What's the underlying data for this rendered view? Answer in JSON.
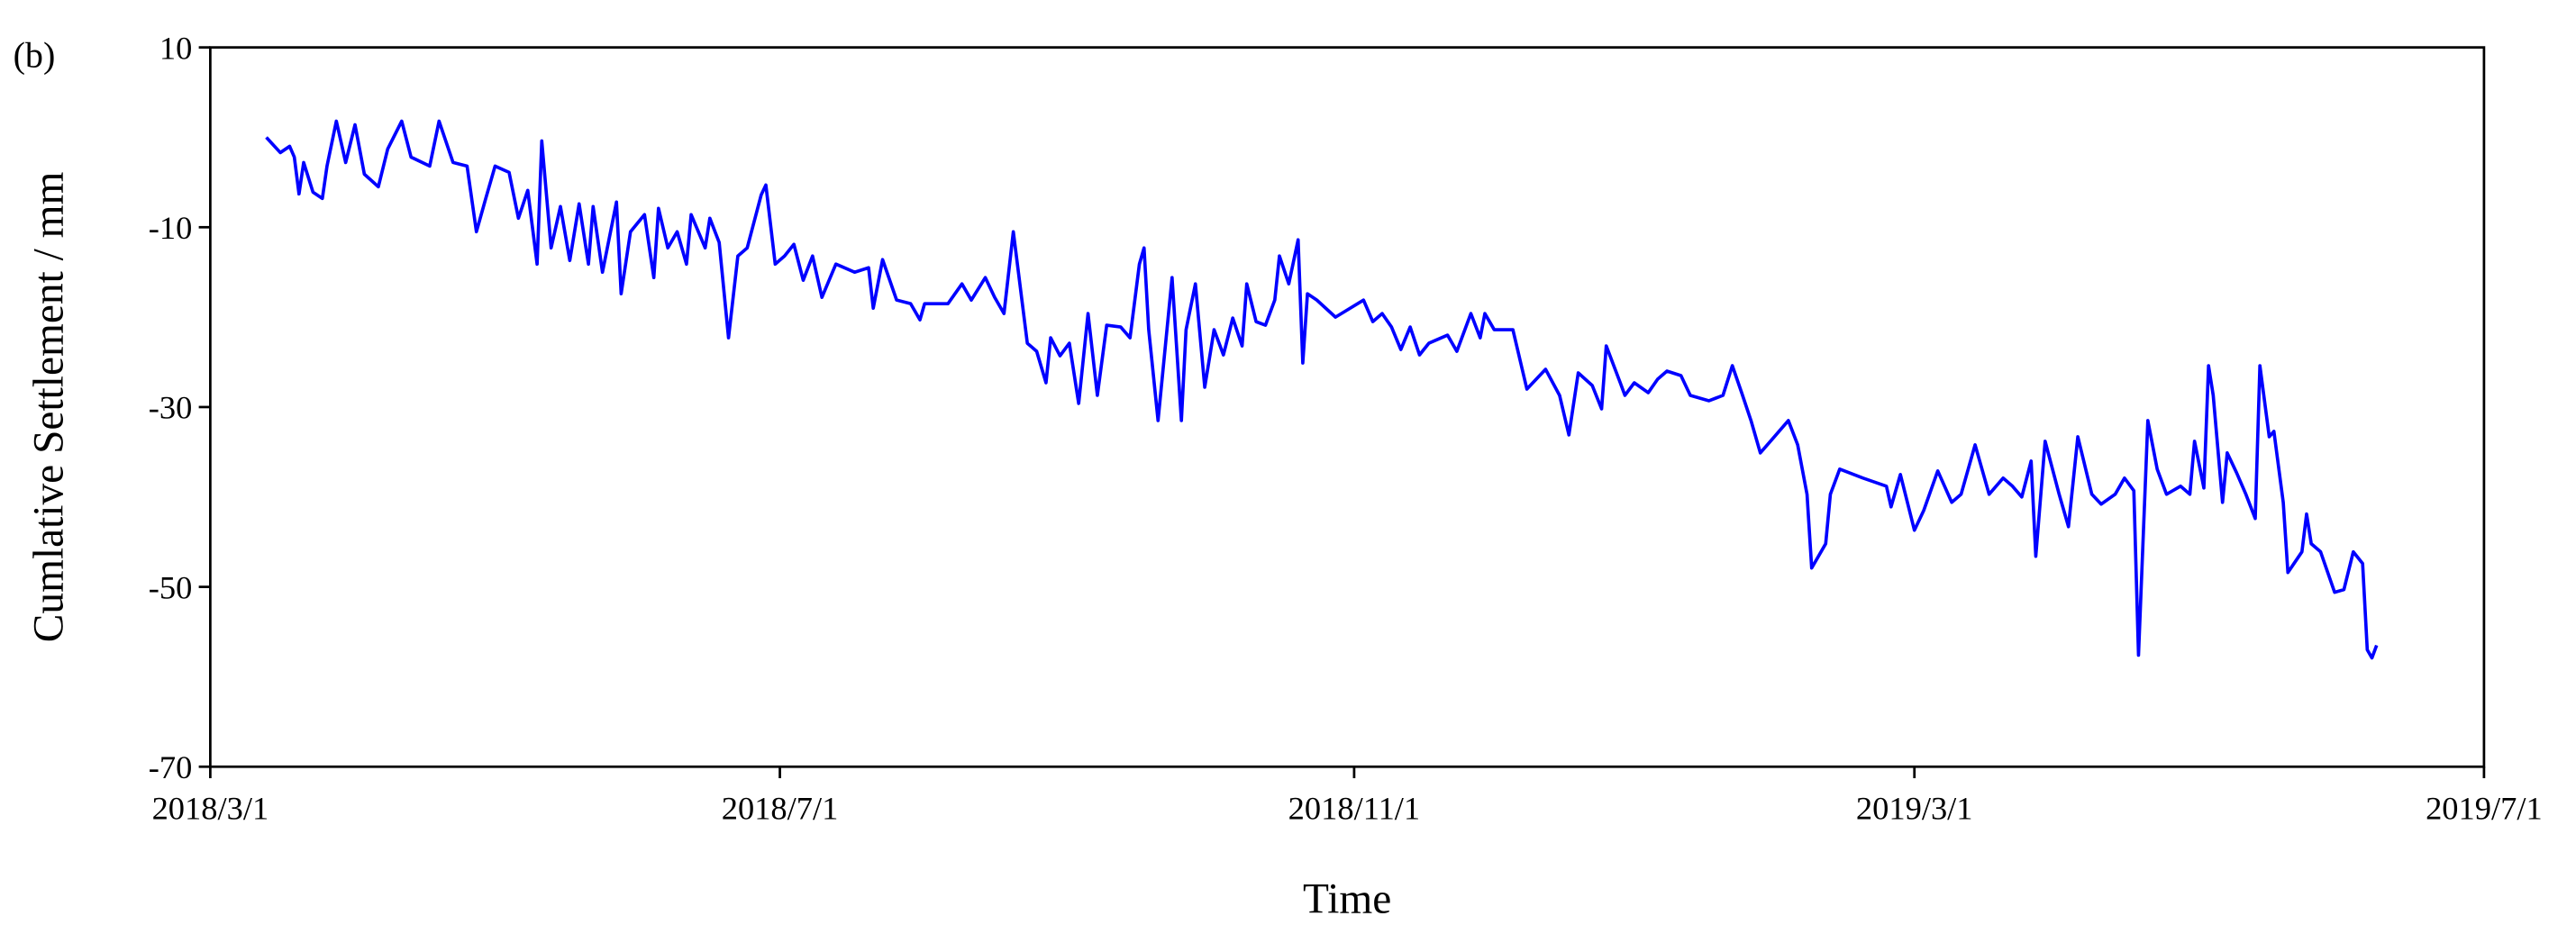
{
  "chart_data": {
    "type": "line",
    "panel_label": "(b)",
    "x_label": "Time",
    "y_label": "Cumlative Settlement / mm",
    "xlim": [
      "2018/3/1",
      "2019/7/1"
    ],
    "xticks": [
      "2018/3/1",
      "2018/7/1",
      "2018/11/1",
      "2019/3/1",
      "2019/7/1"
    ],
    "ylim": [
      -70,
      10
    ],
    "yticks": [
      10,
      -10,
      -30,
      -50,
      -70
    ],
    "grid": false,
    "x": [
      "2018/3/13",
      "2018/3/16",
      "2018/3/18",
      "2018/3/19",
      "2018/3/20",
      "2018/3/21",
      "2018/3/23",
      "2018/3/25",
      "2018/3/26",
      "2018/3/28",
      "2018/3/30",
      "2018/4/1",
      "2018/4/3",
      "2018/4/6",
      "2018/4/8",
      "2018/4/11",
      "2018/4/13",
      "2018/4/17",
      "2018/4/19",
      "2018/4/22",
      "2018/4/25",
      "2018/4/27",
      "2018/4/29",
      "2018/5/1",
      "2018/5/4",
      "2018/5/6",
      "2018/5/8",
      "2018/5/10",
      "2018/5/11",
      "2018/5/13",
      "2018/5/15",
      "2018/5/17",
      "2018/5/19",
      "2018/5/21",
      "2018/5/22",
      "2018/5/24",
      "2018/5/27",
      "2018/5/28",
      "2018/5/30",
      "2018/6/2",
      "2018/6/4",
      "2018/6/5",
      "2018/6/7",
      "2018/6/9",
      "2018/6/11",
      "2018/6/12",
      "2018/6/15",
      "2018/6/16",
      "2018/6/18",
      "2018/6/20",
      "2018/6/22",
      "2018/6/24",
      "2018/6/27",
      "2018/6/28",
      "2018/6/30",
      "2018/7/2",
      "2018/7/4",
      "2018/7/6",
      "2018/7/8",
      "2018/7/10",
      "2018/7/13",
      "2018/7/17",
      "2018/7/20",
      "2018/7/21",
      "2018/7/23",
      "2018/7/26",
      "2018/7/29",
      "2018/7/31",
      "2018/8/1",
      "2018/8/6",
      "2018/8/9",
      "2018/8/11",
      "2018/8/14",
      "2018/8/16",
      "2018/8/18",
      "2018/8/20",
      "2018/8/23",
      "2018/8/25",
      "2018/8/27",
      "2018/8/28",
      "2018/8/30",
      "2018/9/1",
      "2018/9/3",
      "2018/9/5",
      "2018/9/7",
      "2018/9/9",
      "2018/9/12",
      "2018/9/14",
      "2018/9/16",
      "2018/9/17",
      "2018/9/18",
      "2018/9/20",
      "2018/9/23",
      "2018/9/25",
      "2018/9/26",
      "2018/9/28",
      "2018/9/30",
      "2018/10/2",
      "2018/10/4",
      "2018/10/6",
      "2018/10/8",
      "2018/10/9",
      "2018/10/11",
      "2018/10/13",
      "2018/10/15",
      "2018/10/16",
      "2018/10/18",
      "2018/10/20",
      "2018/10/21",
      "2018/10/22",
      "2018/10/24",
      "2018/10/28",
      "2018/11/3",
      "2018/11/5",
      "2018/11/7",
      "2018/11/9",
      "2018/11/11",
      "2018/11/13",
      "2018/11/15",
      "2018/11/17",
      "2018/11/21",
      "2018/11/23",
      "2018/11/26",
      "2018/11/28",
      "2018/11/29",
      "2018/12/1",
      "2018/12/5",
      "2018/12/8",
      "2018/12/12",
      "2018/12/15",
      "2018/12/17",
      "2018/12/19",
      "2018/12/22",
      "2018/12/24",
      "2018/12/25",
      "2018/12/28",
      "2018/12/29",
      "2018/12/31",
      "2019/1/3",
      "2019/1/5",
      "2019/1/7",
      "2019/1/10",
      "2019/1/12",
      "2019/1/16",
      "2019/1/19",
      "2019/1/21",
      "2019/1/23",
      "2019/1/25",
      "2019/1/27",
      "2019/1/30",
      "2019/2/2",
      "2019/2/4",
      "2019/2/6",
      "2019/2/7",
      "2019/2/10",
      "2019/2/11",
      "2019/2/13",
      "2019/2/18",
      "2019/2/23",
      "2019/2/24",
      "2019/2/26",
      "2019/3/1",
      "2019/3/3",
      "2019/3/6",
      "2019/3/9",
      "2019/3/11",
      "2019/3/14",
      "2019/3/17",
      "2019/3/20",
      "2019/3/22",
      "2019/3/24",
      "2019/3/26",
      "2019/3/27",
      "2019/3/29",
      "2019/4/1",
      "2019/4/3",
      "2019/4/5",
      "2019/4/8",
      "2019/4/10",
      "2019/4/13",
      "2019/4/15",
      "2019/4/17",
      "2019/4/18",
      "2019/4/20",
      "2019/4/22",
      "2019/4/24",
      "2019/4/27",
      "2019/4/29",
      "2019/4/30",
      "2019/5/2",
      "2019/5/3",
      "2019/5/4",
      "2019/5/6",
      "2019/5/7",
      "2019/5/9",
      "2019/5/11",
      "2019/5/13",
      "2019/5/14",
      "2019/5/16",
      "2019/5/17",
      "2019/5/19",
      "2019/5/20",
      "2019/5/23",
      "2019/5/24",
      "2019/5/25",
      "2019/5/27",
      "2019/5/30",
      "2019/6/1",
      "2019/6/3",
      "2019/6/5",
      "2019/6/6",
      "2019/6/7",
      "2019/6/8"
    ],
    "series": [
      {
        "name": "Cumlative Settlement",
        "color": "#0000ff",
        "values": [
          0,
          -1.7,
          -1.0,
          -2.2,
          -6.3,
          -2.8,
          -6.1,
          -6.8,
          -3.2,
          1.8,
          -2.8,
          1.4,
          -4.1,
          -5.5,
          -1.3,
          1.8,
          -2.2,
          -3.2,
          1.8,
          -2.8,
          -3.2,
          -10.5,
          -6.8,
          -3.2,
          -3.9,
          -9.0,
          -5.9,
          -14.1,
          -0.4,
          -12.3,
          -7.7,
          -13.7,
          -7.4,
          -14.1,
          -7.7,
          -15.0,
          -7.2,
          -17.4,
          -10.5,
          -8.6,
          -15.6,
          -7.9,
          -12.3,
          -10.5,
          -14.1,
          -8.6,
          -12.3,
          -9.0,
          -11.7,
          -22.3,
          -13.2,
          -12.3,
          -6.4,
          -5.3,
          -14.1,
          -13.2,
          -11.9,
          -15.9,
          -13.2,
          -17.8,
          -14.1,
          -15.0,
          -14.5,
          -19.0,
          -13.6,
          -18.1,
          -18.5,
          -20.3,
          -18.5,
          -18.5,
          -16.3,
          -18.1,
          -15.6,
          -17.8,
          -19.6,
          -10.5,
          -22.9,
          -23.8,
          -27.3,
          -22.3,
          -24.3,
          -22.9,
          -29.6,
          -19.6,
          -28.7,
          -20.9,
          -21.1,
          -22.3,
          -14.1,
          -12.3,
          -21.4,
          -31.5,
          -15.6,
          -31.5,
          -21.4,
          -16.3,
          -27.8,
          -21.4,
          -24.2,
          -20.1,
          -23.2,
          -16.3,
          -20.5,
          -20.9,
          -18.1,
          -13.2,
          -16.3,
          -11.4,
          -25.1,
          -17.4,
          -18.1,
          -20.0,
          -18.1,
          -20.5,
          -19.6,
          -21.1,
          -23.6,
          -21.1,
          -24.2,
          -22.9,
          -22.0,
          -23.8,
          -19.6,
          -22.3,
          -19.6,
          -21.4,
          -21.4,
          -28.0,
          -25.8,
          -28.7,
          -33.1,
          -26.2,
          -27.6,
          -30.2,
          -23.2,
          -27.3,
          -28.7,
          -27.3,
          -28.4,
          -26.9,
          -26.0,
          -26.5,
          -28.7,
          -29.3,
          -28.7,
          -25.4,
          -28.4,
          -31.5,
          -35.1,
          -33.3,
          -31.5,
          -34.2,
          -39.7,
          -47.9,
          -45.2,
          -39.7,
          -36.9,
          -37.9,
          -38.8,
          -41.1,
          -37.5,
          -43.7,
          -41.5,
          -37.1,
          -40.6,
          -39.7,
          -34.2,
          -39.7,
          -37.9,
          -38.8,
          -40.0,
          -36.0,
          -46.6,
          -33.8,
          -39.7,
          -43.3,
          -33.3,
          -39.7,
          -40.8,
          -39.7,
          -37.9,
          -39.3,
          -57.6,
          -31.5,
          -36.9,
          -39.7,
          -38.8,
          -39.7,
          -33.8,
          -39.0,
          -25.4,
          -28.7,
          -40.6,
          -35.1,
          -37.3,
          -39.7,
          -42.4,
          -25.4,
          -33.3,
          -32.7,
          -40.6,
          -48.4,
          -46.1,
          -41.9,
          -45.2,
          -46.1,
          -50.6,
          -50.3,
          -46.1,
          -47.4,
          -57.0,
          -57.9,
          -56.5
        ]
      }
    ]
  }
}
